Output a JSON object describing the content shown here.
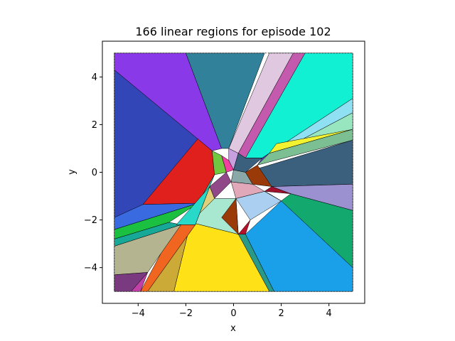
{
  "chart_data": {
    "type": "region-map",
    "title": "166 linear regions for episode 102",
    "xlabel": "x",
    "ylabel": "y",
    "xlim": [
      -5.5,
      5.5
    ],
    "ylim": [
      -5.5,
      5.5
    ],
    "xticks": [
      -4,
      -2,
      0,
      2,
      4
    ],
    "yticks": [
      -4,
      -2,
      0,
      2,
      4
    ],
    "domain_box": [
      -5,
      5,
      -5,
      5
    ],
    "region_count": 166,
    "episode": 102,
    "regions": [
      {
        "color": "#3346b8",
        "points": [
          [
            -5,
            4.3
          ],
          [
            -5,
            -1.9
          ],
          [
            -1.5,
            -1.3
          ],
          [
            -2.2,
            -0.8
          ],
          [
            -1.5,
            1.4
          ],
          [
            -0.9,
            0.9
          ]
        ]
      },
      {
        "color": "#8a39e8",
        "points": [
          [
            -5,
            5
          ],
          [
            -2,
            5
          ],
          [
            -0.5,
            1.0
          ],
          [
            -0.9,
            0.9
          ],
          [
            -5,
            4.3
          ]
        ]
      },
      {
        "color": "#31819a",
        "points": [
          [
            -2,
            5
          ],
          [
            1.3,
            5
          ],
          [
            -0.2,
            1.0
          ],
          [
            -0.5,
            1.0
          ]
        ]
      },
      {
        "color": "#e0c8e0",
        "points": [
          [
            1.5,
            5
          ],
          [
            2.5,
            5
          ],
          [
            0.2,
            0.8
          ],
          [
            -0.2,
            1.0
          ]
        ]
      },
      {
        "color": "#c45aae",
        "points": [
          [
            2.5,
            5
          ],
          [
            3.0,
            5
          ],
          [
            0.5,
            0.6
          ],
          [
            0.2,
            0.8
          ]
        ]
      },
      {
        "color": "#12f0d3",
        "points": [
          [
            3.0,
            5
          ],
          [
            5,
            5
          ],
          [
            5,
            3.1
          ],
          [
            1.2,
            0.6
          ],
          [
            0.5,
            0.6
          ]
        ]
      },
      {
        "color": "#8ee0f2",
        "points": [
          [
            5,
            3.1
          ],
          [
            5,
            2.5
          ],
          [
            1.4,
            0.6
          ],
          [
            1.2,
            0.6
          ]
        ]
      },
      {
        "color": "#98e6c0",
        "points": [
          [
            5,
            2.5
          ],
          [
            5,
            1.8
          ],
          [
            1.5,
            0.8
          ],
          [
            1.4,
            0.6
          ]
        ]
      },
      {
        "color": "#f2f230",
        "points": [
          [
            5,
            1.8
          ],
          [
            1.5,
            0.8
          ],
          [
            1.8,
            1.2
          ]
        ]
      },
      {
        "color": "#7bbf92",
        "points": [
          [
            5,
            1.8
          ],
          [
            5,
            1.35
          ],
          [
            1.0,
            0.3
          ],
          [
            1.5,
            0.8
          ]
        ]
      },
      {
        "color": "#3a607e",
        "points": [
          [
            5,
            1.35
          ],
          [
            5,
            -0.5
          ],
          [
            1.6,
            -0.6
          ],
          [
            0.5,
            0.0
          ]
        ]
      },
      {
        "color": "#9b90d0",
        "points": [
          [
            5,
            -0.5
          ],
          [
            5,
            -1.6
          ],
          [
            2.4,
            -0.9
          ],
          [
            1.6,
            -0.6
          ]
        ]
      },
      {
        "color": "#12a86e",
        "points": [
          [
            5,
            -1.6
          ],
          [
            5,
            -4.0
          ],
          [
            2.0,
            -1.2
          ],
          [
            2.4,
            -0.9
          ]
        ]
      },
      {
        "color": "#1aa0e8",
        "points": [
          [
            5,
            -4.0
          ],
          [
            5,
            -5
          ],
          [
            1.7,
            -5
          ],
          [
            0.5,
            -2.6
          ],
          [
            2.0,
            -1.2
          ]
        ]
      },
      {
        "color": "#2a9a88",
        "points": [
          [
            1.7,
            -5
          ],
          [
            1.5,
            -5
          ],
          [
            0.2,
            -2.6
          ],
          [
            0.5,
            -2.6
          ]
        ]
      },
      {
        "color": "#ffe118",
        "points": [
          [
            1.5,
            -5
          ],
          [
            -2.5,
            -5
          ],
          [
            -1.8,
            -2.1
          ],
          [
            0.2,
            -2.6
          ]
        ]
      },
      {
        "color": "#ccaa38",
        "points": [
          [
            -2.5,
            -5
          ],
          [
            -3.6,
            -5
          ],
          [
            -1.6,
            -2.2
          ],
          [
            -1.8,
            -2.1
          ]
        ]
      },
      {
        "color": "#f06520",
        "points": [
          [
            -3.6,
            -5
          ],
          [
            -3.9,
            -5
          ],
          [
            -2.4,
            -2.2
          ],
          [
            -1.6,
            -2.2
          ]
        ]
      },
      {
        "color": "#c040a8",
        "points": [
          [
            -3.9,
            -5
          ],
          [
            -4.3,
            -5
          ],
          [
            -3.6,
            -4.2
          ]
        ]
      },
      {
        "color": "#7a3a80",
        "points": [
          [
            -5,
            -5
          ],
          [
            -4.3,
            -5
          ],
          [
            -3.6,
            -4.2
          ],
          [
            -5,
            -4.3
          ]
        ]
      },
      {
        "color": "#b4b490",
        "points": [
          [
            -5,
            -4.3
          ],
          [
            -3.6,
            -4.2
          ],
          [
            -2.2,
            -2.2
          ],
          [
            -5,
            -3.1
          ]
        ]
      },
      {
        "color": "#17a898",
        "points": [
          [
            -5,
            -3.1
          ],
          [
            -2.2,
            -2.2
          ],
          [
            -2.7,
            -2.1
          ],
          [
            -5,
            -2.8
          ]
        ]
      },
      {
        "color": "#1cc040",
        "points": [
          [
            -5,
            -2.8
          ],
          [
            -2.7,
            -2.1
          ],
          [
            -1.5,
            -1.3
          ],
          [
            -5,
            -2.4
          ]
        ]
      },
      {
        "color": "#5ae0f2",
        "points": [
          [
            -5,
            -2.4
          ],
          [
            -1.5,
            -1.3
          ],
          [
            -5,
            -1.9
          ]
        ]
      },
      {
        "color": "#e0201c",
        "points": [
          [
            -1.5,
            1.4
          ],
          [
            -3.8,
            -1.35
          ],
          [
            -1.5,
            -1.3
          ],
          [
            -0.8,
            -0.1
          ],
          [
            -0.9,
            0.9
          ]
        ]
      },
      {
        "color": "#3a6ae0",
        "points": [
          [
            -5,
            -1.9
          ],
          [
            -3.8,
            -1.35
          ],
          [
            -1.5,
            -1.3
          ],
          [
            -5,
            -2.4
          ]
        ]
      },
      {
        "color": "#a8e8d0",
        "points": [
          [
            -1.8,
            -2.1
          ],
          [
            -0.8,
            -1.1
          ],
          [
            0.1,
            -1.1
          ],
          [
            0.2,
            -2.6
          ]
        ]
      },
      {
        "color": "#9a3a08",
        "points": [
          [
            0.2,
            -2.6
          ],
          [
            0.1,
            -1.1
          ],
          [
            -0.5,
            -1.9
          ]
        ]
      },
      {
        "color": "#b8102c",
        "points": [
          [
            0.2,
            -2.6
          ],
          [
            0.7,
            -2.0
          ],
          [
            0.5,
            -2.6
          ]
        ]
      },
      {
        "color": "#aacff0",
        "points": [
          [
            0.1,
            -1.1
          ],
          [
            0.7,
            -2.0
          ],
          [
            2.0,
            -1.2
          ],
          [
            1.3,
            -0.8
          ]
        ]
      },
      {
        "color": "#e0a8b8",
        "points": [
          [
            0.1,
            -1.1
          ],
          [
            1.3,
            -0.8
          ],
          [
            0.8,
            -0.5
          ],
          [
            -0.1,
            -0.4
          ]
        ]
      },
      {
        "color": "#8aa8a8",
        "points": [
          [
            -0.1,
            -0.4
          ],
          [
            0.8,
            -0.5
          ],
          [
            0.5,
            0.0
          ],
          [
            0.0,
            0.1
          ]
        ]
      },
      {
        "color": "#9a3a08",
        "points": [
          [
            0.5,
            0.0
          ],
          [
            1.0,
            0.3
          ],
          [
            1.6,
            -0.6
          ],
          [
            0.8,
            -0.5
          ]
        ]
      },
      {
        "color": "#a0102c",
        "points": [
          [
            1.6,
            -0.6
          ],
          [
            2.4,
            -0.9
          ],
          [
            1.3,
            -0.8
          ]
        ]
      },
      {
        "color": "#d8e890",
        "points": [
          [
            1.3,
            -0.8
          ],
          [
            2.0,
            -1.2
          ],
          [
            1.5,
            -0.9
          ]
        ]
      },
      {
        "color": "#904888",
        "points": [
          [
            -0.8,
            -1.1
          ],
          [
            -0.1,
            -0.4
          ],
          [
            -0.3,
            0.0
          ],
          [
            -1.0,
            -0.6
          ]
        ]
      },
      {
        "color": "#70c840",
        "points": [
          [
            -0.9,
            0.9
          ],
          [
            -0.8,
            -0.1
          ],
          [
            -0.3,
            0.0
          ],
          [
            -0.5,
            0.7
          ]
        ]
      },
      {
        "color": "#f040a0",
        "points": [
          [
            -0.5,
            0.7
          ],
          [
            -0.3,
            0.0
          ],
          [
            0.0,
            0.1
          ],
          [
            -0.2,
            0.5
          ]
        ]
      },
      {
        "color": "#c8a0e0",
        "points": [
          [
            -0.2,
            1.0
          ],
          [
            0.2,
            0.8
          ],
          [
            0.0,
            0.1
          ],
          [
            -0.2,
            0.5
          ]
        ]
      },
      {
        "color": "#3a607e",
        "points": [
          [
            0.2,
            0.8
          ],
          [
            0.5,
            0.6
          ],
          [
            1.2,
            0.6
          ],
          [
            0.5,
            0.0
          ],
          [
            0.0,
            0.1
          ]
        ]
      },
      {
        "color": "#5848c0",
        "points": [
          [
            1.2,
            0.6
          ],
          [
            1.5,
            0.8
          ],
          [
            1.0,
            0.3
          ]
        ]
      },
      {
        "color": "#30c8a8",
        "points": [
          [
            -1.0,
            -0.6
          ],
          [
            -0.8,
            -0.1
          ],
          [
            -1.5,
            -1.3
          ]
        ]
      },
      {
        "color": "#e0d078",
        "points": [
          [
            -1.6,
            -2.2
          ],
          [
            -1.0,
            -0.6
          ],
          [
            -0.8,
            -1.1
          ],
          [
            -1.8,
            -2.1
          ]
        ]
      },
      {
        "color": "#28d8c8",
        "points": [
          [
            -2.4,
            -2.2
          ],
          [
            -1.0,
            -0.6
          ],
          [
            -1.6,
            -2.2
          ]
        ]
      }
    ]
  }
}
